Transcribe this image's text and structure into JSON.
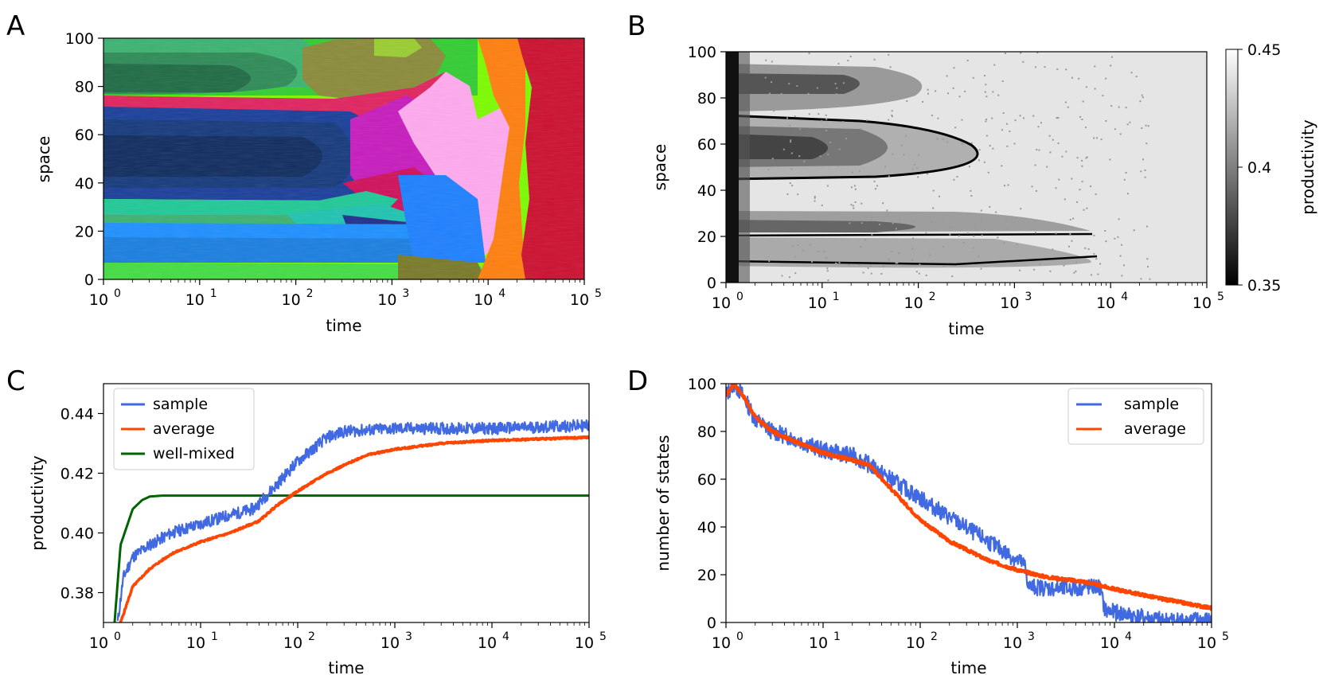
{
  "panels": {
    "A": {
      "letter": "A",
      "xlabel": "time",
      "ylabel": "space"
    },
    "B": {
      "letter": "B",
      "xlabel": "time",
      "ylabel": "space",
      "colorbar_label": "productivity",
      "colorbar_ticks": [
        "0.45",
        "0.4",
        "0.35"
      ]
    },
    "C": {
      "letter": "C",
      "xlabel": "time",
      "ylabel": "productivity"
    },
    "D": {
      "letter": "D",
      "xlabel": "time",
      "ylabel": "number of states"
    }
  },
  "colors": {
    "sample": "#4169e1",
    "average": "#ff4500",
    "well_mixed": "#006400",
    "bg_gray": "#e6e6e6",
    "final_red": "#cc1030"
  },
  "x_ticks": [
    "10",
    "10",
    "10",
    "10",
    "10",
    "10"
  ],
  "x_exponents": [
    "0",
    "1",
    "2",
    "3",
    "4",
    "5"
  ],
  "chart_data": [
    {
      "id": "A",
      "type": "heatmap",
      "title": "",
      "xlabel": "time",
      "ylabel": "space",
      "xscale": "log",
      "xlim": [
        1,
        100000
      ],
      "ylim": [
        0,
        100
      ],
      "yticks": [
        "0",
        "20",
        "40",
        "60",
        "80",
        "100"
      ],
      "description_regions": [
        {
          "color": "#2e8b57",
          "y": [
            75,
            100
          ],
          "t_end": 60
        },
        {
          "color": "#1e3f8f",
          "y": [
            40,
            70
          ],
          "t_end": 600
        },
        {
          "color": "#1e90ff",
          "y": [
            5,
            25
          ],
          "t_end": 8000
        },
        {
          "color": "#c71585",
          "y": [
            25,
            70
          ],
          "t_start": 300,
          "t_end": 3000
        },
        {
          "color": "#ffb6e6",
          "y": [
            15,
            75
          ],
          "t_start": 1000,
          "t_end": 15000
        },
        {
          "color": "#ff7f0e",
          "y": [
            0,
            100
          ],
          "t_start": 8000,
          "t_end": 20000
        },
        {
          "color": "#cc1030",
          "y": [
            0,
            100
          ],
          "t_start": 15000,
          "t_end": 100000
        }
      ]
    },
    {
      "id": "B",
      "type": "heatmap",
      "xlabel": "time",
      "ylabel": "space",
      "xscale": "log",
      "xlim": [
        1,
        100000
      ],
      "ylim": [
        0,
        100
      ],
      "yticks": [
        "0",
        "20",
        "40",
        "60",
        "80",
        "100"
      ],
      "colorbar": {
        "label": "productivity",
        "range": [
          0.35,
          0.45
        ],
        "ticks": [
          0.35,
          0.4,
          0.45
        ]
      }
    },
    {
      "id": "C",
      "type": "line",
      "xlabel": "time",
      "ylabel": "productivity",
      "xscale": "log",
      "xlim": [
        1,
        100000
      ],
      "ylim": [
        0.37,
        0.45
      ],
      "yticks": [
        "0.38",
        "0.40",
        "0.42",
        "0.44"
      ],
      "legend": "top-left",
      "series": [
        {
          "name": "sample",
          "x": [
            1.4,
            1.6,
            2,
            3,
            5,
            10,
            20,
            35,
            60,
            100,
            200,
            300,
            1000,
            10000,
            100000
          ],
          "values": [
            0.37,
            0.385,
            0.392,
            0.396,
            0.4,
            0.403,
            0.406,
            0.408,
            0.416,
            0.424,
            0.432,
            0.434,
            0.435,
            0.435,
            0.436
          ]
        },
        {
          "name": "average",
          "x": [
            1.5,
            2,
            3,
            5,
            10,
            20,
            40,
            60,
            100,
            200,
            500,
            1000,
            3000,
            10000,
            100000
          ],
          "values": [
            0.37,
            0.382,
            0.388,
            0.393,
            0.397,
            0.4,
            0.404,
            0.409,
            0.414,
            0.42,
            0.426,
            0.428,
            0.43,
            0.431,
            0.432
          ]
        },
        {
          "name": "well-mixed",
          "x": [
            1.3,
            1.5,
            2,
            2.5,
            3,
            4,
            100000
          ],
          "values": [
            0.37,
            0.396,
            0.408,
            0.411,
            0.4122,
            0.4125,
            0.4125
          ]
        }
      ]
    },
    {
      "id": "D",
      "type": "line",
      "xlabel": "time",
      "ylabel": "number of states",
      "xscale": "log",
      "xlim": [
        1,
        100000
      ],
      "ylim": [
        0,
        100
      ],
      "yticks": [
        "0",
        "20",
        "40",
        "60",
        "80",
        "100"
      ],
      "legend": "top-right",
      "series": [
        {
          "name": "sample",
          "x": [
            1,
            1.2,
            1.5,
            2,
            3,
            5,
            10,
            20,
            30,
            50,
            100,
            200,
            500,
            1200,
            1300,
            3000,
            7000,
            8000,
            20000,
            30000,
            100000
          ],
          "values": [
            95,
            100,
            95,
            85,
            80,
            77,
            72,
            70,
            66,
            60,
            52,
            44,
            34,
            24,
            15,
            14,
            15,
            5,
            2,
            1,
            1
          ]
        },
        {
          "name": "average",
          "x": [
            1,
            1.2,
            1.5,
            2,
            3,
            5,
            10,
            20,
            30,
            50,
            100,
            200,
            500,
            1000,
            2000,
            5000,
            10000,
            30000,
            100000
          ],
          "values": [
            95,
            100,
            95,
            86,
            80,
            76,
            71,
            68,
            66,
            56,
            43,
            34,
            26,
            22,
            19,
            17,
            14,
            10,
            6
          ]
        }
      ]
    }
  ]
}
